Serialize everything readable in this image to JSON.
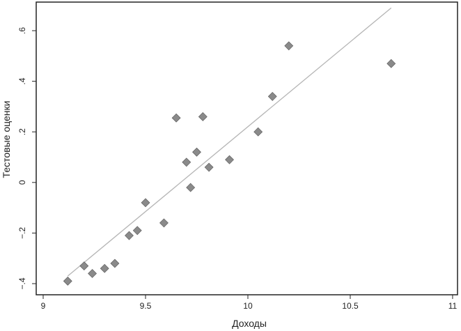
{
  "chart_data": {
    "type": "scatter",
    "xlabel": "Доходы",
    "ylabel": "Тестовые оценки",
    "xlim": [
      8.966,
      11.024
    ],
    "ylim": [
      -0.444,
      0.713
    ],
    "x_ticks": [
      9,
      9.5,
      10,
      10.5,
      11
    ],
    "x_tick_labels": [
      "9",
      "9.5",
      "10",
      "10.5",
      "11"
    ],
    "y_ticks": [
      -0.4,
      -0.2,
      0,
      0.2,
      0.4,
      0.6
    ],
    "y_tick_labels": [
      "−.4",
      "−.2",
      "0",
      ".2",
      ".4",
      ".6"
    ],
    "grid": false,
    "marker": "diamond",
    "marker_color": "#8a8a8a",
    "line_color": "#b5b5b5",
    "points": [
      [
        9.12,
        -0.39
      ],
      [
        9.2,
        -0.33
      ],
      [
        9.24,
        -0.36
      ],
      [
        9.3,
        -0.34
      ],
      [
        9.35,
        -0.32
      ],
      [
        9.42,
        -0.21
      ],
      [
        9.46,
        -0.19
      ],
      [
        9.5,
        -0.08
      ],
      [
        9.59,
        -0.16
      ],
      [
        9.65,
        0.255
      ],
      [
        9.7,
        0.08
      ],
      [
        9.72,
        -0.02
      ],
      [
        9.75,
        0.12
      ],
      [
        9.78,
        0.26
      ],
      [
        9.81,
        0.06
      ],
      [
        9.91,
        0.09
      ],
      [
        10.05,
        0.2
      ],
      [
        10.12,
        0.34
      ],
      [
        10.2,
        0.54
      ],
      [
        10.7,
        0.47
      ]
    ],
    "fit_line": [
      [
        9.12,
        -0.37
      ],
      [
        10.7,
        0.69
      ]
    ]
  }
}
